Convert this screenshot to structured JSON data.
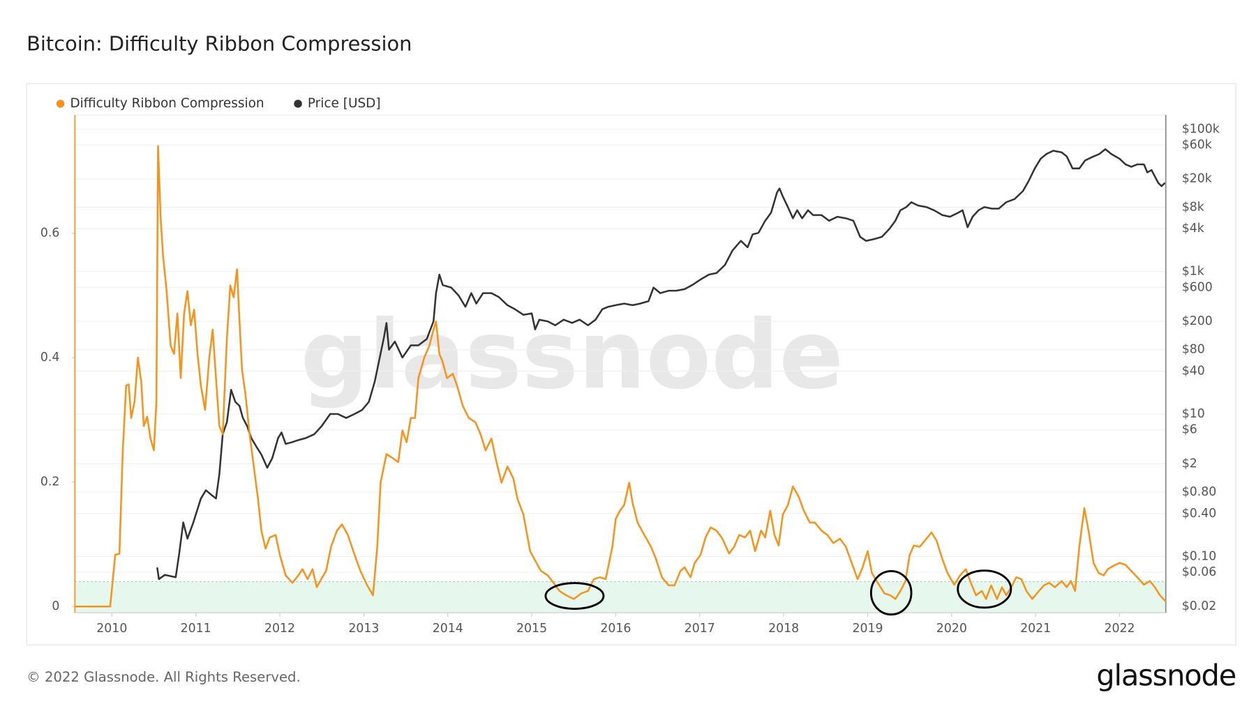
{
  "chart_data": {
    "type": "line",
    "title": "Bitcoin: Difficulty Ribbon Compression",
    "watermark": "glassnode",
    "footer": "© 2022 Glassnode. All Rights Reserved.",
    "logo": "glassnode",
    "legend": "top-left",
    "grid": true,
    "xlim": [
      2009.56,
      2022.55
    ],
    "xticks": [
      2010,
      2011,
      2012,
      2013,
      2014,
      2015,
      2016,
      2017,
      2018,
      2019,
      2020,
      2021,
      2022
    ],
    "ylim": [
      -0.01,
      0.79
    ],
    "yticks": [
      0,
      0.2,
      0.4,
      0.6
    ],
    "y2lim": [
      0.0162,
      158000
    ],
    "y2log": true,
    "y2ticks": [
      {
        "value": 0.02,
        "label": "$0.02"
      },
      {
        "value": 0.06,
        "label": "$0.06"
      },
      {
        "value": 0.1,
        "label": "$0.10"
      },
      {
        "value": 0.4,
        "label": "$0.40"
      },
      {
        "value": 0.8,
        "label": "$0.80"
      },
      {
        "value": 2,
        "label": "$2"
      },
      {
        "value": 6,
        "label": "$6"
      },
      {
        "value": 10,
        "label": "$10"
      },
      {
        "value": 40,
        "label": "$40"
      },
      {
        "value": 80,
        "label": "$80"
      },
      {
        "value": 200,
        "label": "$200"
      },
      {
        "value": 600,
        "label": "$600"
      },
      {
        "value": 1000,
        "label": "$1k"
      },
      {
        "value": 4000,
        "label": "$4k"
      },
      {
        "value": 8000,
        "label": "$8k"
      },
      {
        "value": 20000,
        "label": "$20k"
      },
      {
        "value": 60000,
        "label": "$60k"
      },
      {
        "value": 100000,
        "label": "$100k"
      }
    ],
    "band_max": 0.04,
    "band_color": "#e6f7ee",
    "circled": [
      {
        "x": 2015.51,
        "y": 0.017
      },
      {
        "x": 2019.28,
        "y": 0.022
      },
      {
        "x": 2020.39,
        "y": 0.028
      }
    ],
    "series": [
      {
        "name": "Difficulty Ribbon Compression",
        "color": "#f7931a",
        "x": [
          2009.56,
          2009.98,
          2010.04,
          2010.09,
          2010.13,
          2010.17,
          2010.2,
          2010.23,
          2010.27,
          2010.31,
          2010.35,
          2010.38,
          2010.42,
          2010.46,
          2010.5,
          2010.53,
          2010.55,
          2010.58,
          2010.61,
          2010.65,
          2010.7,
          2010.74,
          2010.78,
          2010.82,
          2010.86,
          2010.9,
          2010.94,
          2010.98,
          2011.02,
          2011.06,
          2011.11,
          2011.16,
          2011.2,
          2011.24,
          2011.28,
          2011.32,
          2011.37,
          2011.41,
          2011.45,
          2011.49,
          2011.52,
          2011.55,
          2011.59,
          2011.64,
          2011.69,
          2011.74,
          2011.78,
          2011.83,
          2011.88,
          2011.95,
          2012.0,
          2012.07,
          2012.15,
          2012.22,
          2012.27,
          2012.33,
          2012.39,
          2012.44,
          2012.48,
          2012.55,
          2012.61,
          2012.68,
          2012.74,
          2012.81,
          2012.89,
          2012.96,
          2013.04,
          2013.11,
          2013.16,
          2013.2,
          2013.27,
          2013.35,
          2013.41,
          2013.46,
          2013.51,
          2013.56,
          2013.61,
          2013.65,
          2013.72,
          2013.78,
          2013.83,
          2013.86,
          2013.9,
          2013.94,
          2013.99,
          2014.06,
          2014.11,
          2014.18,
          2014.25,
          2014.33,
          2014.39,
          2014.45,
          2014.52,
          2014.58,
          2014.64,
          2014.71,
          2014.78,
          2014.83,
          2014.9,
          2014.98,
          2015.04,
          2015.11,
          2015.19,
          2015.26,
          2015.33,
          2015.41,
          2015.5,
          2015.59,
          2015.67,
          2015.74,
          2015.81,
          2015.88,
          2015.96,
          2016.0,
          2016.05,
          2016.1,
          2016.16,
          2016.2,
          2016.26,
          2016.34,
          2016.42,
          2016.48,
          2016.55,
          2016.63,
          2016.7,
          2016.77,
          2016.82,
          2016.89,
          2016.94,
          2017.01,
          2017.07,
          2017.13,
          2017.2,
          2017.27,
          2017.35,
          2017.41,
          2017.47,
          2017.54,
          2017.6,
          2017.66,
          2017.73,
          2017.78,
          2017.84,
          2017.89,
          2017.94,
          2017.99,
          2018.05,
          2018.11,
          2018.18,
          2018.24,
          2018.31,
          2018.37,
          2018.45,
          2018.52,
          2018.59,
          2018.67,
          2018.74,
          2018.81,
          2018.88,
          2018.94,
          2019.0,
          2019.05,
          2019.12,
          2019.2,
          2019.27,
          2019.33,
          2019.39,
          2019.45,
          2019.5,
          2019.55,
          2019.62,
          2019.7,
          2019.76,
          2019.82,
          2019.89,
          2019.95,
          2020.03,
          2020.1,
          2020.17,
          2020.22,
          2020.29,
          2020.36,
          2020.41,
          2020.47,
          2020.54,
          2020.6,
          2020.65,
          2020.71,
          2020.77,
          2020.83,
          2020.89,
          2020.96,
          2021.04,
          2021.1,
          2021.16,
          2021.23,
          2021.31,
          2021.37,
          2021.42,
          2021.47,
          2021.52,
          2021.58,
          2021.63,
          2021.69,
          2021.75,
          2021.81,
          2021.86,
          2021.92,
          2022.0,
          2022.07,
          2022.14,
          2022.21,
          2022.29,
          2022.36,
          2022.42,
          2022.48,
          2022.55
        ],
        "values": [
          0,
          0,
          0.083,
          0.085,
          0.251,
          0.355,
          0.357,
          0.303,
          0.329,
          0.4,
          0.361,
          0.29,
          0.305,
          0.27,
          0.251,
          0.329,
          0.74,
          0.626,
          0.562,
          0.51,
          0.419,
          0.406,
          0.471,
          0.367,
          0.471,
          0.507,
          0.452,
          0.477,
          0.406,
          0.355,
          0.316,
          0.4,
          0.445,
          0.367,
          0.29,
          0.277,
          0.432,
          0.516,
          0.497,
          0.542,
          0.458,
          0.38,
          0.342,
          0.277,
          0.225,
          0.173,
          0.122,
          0.093,
          0.111,
          0.115,
          0.083,
          0.05,
          0.038,
          0.05,
          0.06,
          0.044,
          0.06,
          0.031,
          0.041,
          0.057,
          0.096,
          0.122,
          0.132,
          0.115,
          0.083,
          0.057,
          0.034,
          0.018,
          0.096,
          0.199,
          0.245,
          0.238,
          0.232,
          0.283,
          0.264,
          0.303,
          0.303,
          0.367,
          0.4,
          0.419,
          0.445,
          0.458,
          0.406,
          0.393,
          0.367,
          0.374,
          0.355,
          0.322,
          0.303,
          0.296,
          0.277,
          0.251,
          0.27,
          0.232,
          0.199,
          0.225,
          0.206,
          0.173,
          0.148,
          0.089,
          0.074,
          0.057,
          0.05,
          0.038,
          0.025,
          0.018,
          0.012,
          0.021,
          0.025,
          0.044,
          0.047,
          0.044,
          0.096,
          0.141,
          0.154,
          0.163,
          0.199,
          0.167,
          0.135,
          0.115,
          0.096,
          0.076,
          0.047,
          0.034,
          0.034,
          0.057,
          0.063,
          0.047,
          0.07,
          0.083,
          0.111,
          0.127,
          0.122,
          0.109,
          0.085,
          0.096,
          0.115,
          0.111,
          0.122,
          0.089,
          0.122,
          0.111,
          0.154,
          0.115,
          0.098,
          0.148,
          0.163,
          0.193,
          0.176,
          0.154,
          0.135,
          0.135,
          0.122,
          0.115,
          0.102,
          0.109,
          0.096,
          0.07,
          0.044,
          0.063,
          0.089,
          0.054,
          0.038,
          0.021,
          0.018,
          0.012,
          0.025,
          0.041,
          0.083,
          0.098,
          0.096,
          0.109,
          0.119,
          0.106,
          0.076,
          0.054,
          0.035,
          0.05,
          0.06,
          0.041,
          0.018,
          0.025,
          0.012,
          0.034,
          0.012,
          0.031,
          0.018,
          0.031,
          0.047,
          0.044,
          0.025,
          0.012,
          0.025,
          0.034,
          0.038,
          0.031,
          0.041,
          0.031,
          0.041,
          0.025,
          0.096,
          0.158,
          0.122,
          0.07,
          0.054,
          0.05,
          0.06,
          0.065,
          0.07,
          0.067,
          0.057,
          0.047,
          0.035,
          0.041,
          0.031,
          0.018,
          0.008
        ]
      },
      {
        "name": "Price [USD]",
        "color": "#333333",
        "axis": "y2",
        "x": [
          2010.54,
          2010.56,
          2010.63,
          2010.76,
          2010.8,
          2010.85,
          2010.9,
          2010.97,
          2011.06,
          2011.12,
          2011.18,
          2011.24,
          2011.28,
          2011.32,
          2011.37,
          2011.42,
          2011.47,
          2011.52,
          2011.56,
          2011.61,
          2011.66,
          2011.72,
          2011.78,
          2011.85,
          2011.91,
          2011.98,
          2012.02,
          2012.07,
          2012.14,
          2012.22,
          2012.31,
          2012.41,
          2012.5,
          2012.6,
          2012.69,
          2012.79,
          2012.89,
          2012.98,
          2013.06,
          2013.13,
          2013.19,
          2013.24,
          2013.27,
          2013.3,
          2013.37,
          2013.46,
          2013.56,
          2013.65,
          2013.75,
          2013.83,
          2013.86,
          2013.9,
          2013.94,
          2014.04,
          2014.13,
          2014.21,
          2014.28,
          2014.34,
          2014.42,
          2014.52,
          2014.61,
          2014.71,
          2014.8,
          2014.9,
          2015.0,
          2015.04,
          2015.09,
          2015.19,
          2015.28,
          2015.38,
          2015.48,
          2015.57,
          2015.67,
          2015.76,
          2015.84,
          2015.91,
          2016.0,
          2016.1,
          2016.2,
          2016.29,
          2016.39,
          2016.45,
          2016.53,
          2016.63,
          2016.72,
          2016.82,
          2016.91,
          2017.01,
          2017.11,
          2017.2,
          2017.3,
          2017.39,
          2017.49,
          2017.57,
          2017.63,
          2017.7,
          2017.78,
          2017.85,
          2017.92,
          2017.95,
          2017.99,
          2018.05,
          2018.11,
          2018.16,
          2018.22,
          2018.29,
          2018.35,
          2018.45,
          2018.54,
          2018.64,
          2018.74,
          2018.83,
          2018.91,
          2018.98,
          2019.07,
          2019.17,
          2019.26,
          2019.33,
          2019.39,
          2019.46,
          2019.52,
          2019.6,
          2019.7,
          2019.79,
          2019.89,
          2019.98,
          2020.08,
          2020.13,
          2020.19,
          2020.25,
          2020.32,
          2020.39,
          2020.48,
          2020.56,
          2020.65,
          2020.75,
          2020.85,
          2020.92,
          2020.99,
          2021.06,
          2021.13,
          2021.21,
          2021.31,
          2021.37,
          2021.44,
          2021.52,
          2021.59,
          2021.67,
          2021.76,
          2021.83,
          2021.9,
          2022.0,
          2022.07,
          2022.14,
          2022.21,
          2022.29,
          2022.33,
          2022.38,
          2022.46,
          2022.5,
          2022.54
        ],
        "values": [
          0.07,
          0.048,
          0.055,
          0.051,
          0.106,
          0.3,
          0.178,
          0.3,
          0.65,
          0.85,
          0.74,
          0.65,
          1.43,
          5.2,
          7.7,
          21.9,
          14.8,
          13,
          8.8,
          6.8,
          4.6,
          3.5,
          2.7,
          1.76,
          2.4,
          4.6,
          5.5,
          3.8,
          4.0,
          4.3,
          4.6,
          5.2,
          6.8,
          10,
          10,
          8.8,
          10,
          11.4,
          14.8,
          28.4,
          62,
          119,
          190,
          80,
          104,
          62,
          92,
          92,
          113,
          200,
          498,
          906,
          646,
          597,
          460,
          320,
          498,
          355,
          498,
          498,
          437,
          337,
          296,
          247,
          259,
          154,
          211,
          200,
          176,
          211,
          190,
          211,
          176,
          211,
          296,
          320,
          337,
          355,
          337,
          355,
          384,
          597,
          498,
          538,
          538,
          566,
          646,
          774,
          906,
          953,
          1236,
          1977,
          2700,
          2193,
          3326,
          3500,
          5176,
          6714,
          12860,
          14660,
          11300,
          8050,
          5600,
          7260,
          5600,
          7260,
          6210,
          6210,
          5176,
          5890,
          5600,
          5176,
          3076,
          2700,
          2844,
          3076,
          3990,
          5176,
          7260,
          8050,
          9420,
          8470,
          8050,
          7260,
          6210,
          5890,
          6714,
          7260,
          4200,
          5890,
          7260,
          8050,
          7640,
          7640,
          9420,
          10440,
          13550,
          19000,
          28050,
          38370,
          44870,
          49770,
          47200,
          41500,
          28050,
          28050,
          36400,
          40360,
          44870,
          52360,
          44870,
          38370,
          32000,
          29580,
          32000,
          32000,
          24660,
          26670,
          17580,
          15850,
          17580
        ]
      }
    ]
  }
}
